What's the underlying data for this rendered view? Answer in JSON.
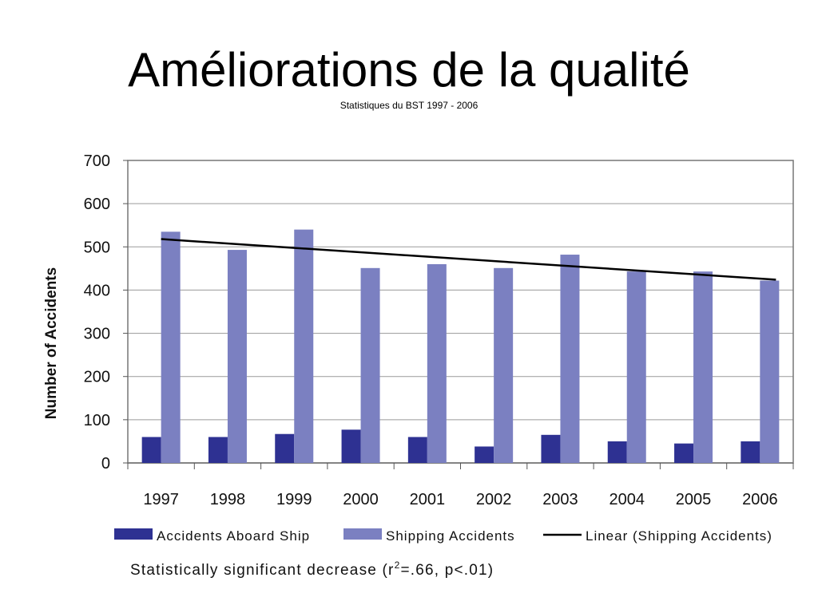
{
  "slide": {
    "title": "Améliorations de la qualité",
    "subtitle": "Statistiques du BST 1997 - 2006"
  },
  "chart_data": {
    "type": "bar",
    "categories": [
      "1997",
      "1998",
      "1999",
      "2000",
      "2001",
      "2002",
      "2003",
      "2004",
      "2005",
      "2006"
    ],
    "series": [
      {
        "name": "Accidents Aboard Ship",
        "color": "#2e3192",
        "values": [
          60,
          60,
          67,
          77,
          60,
          38,
          65,
          50,
          45,
          50
        ]
      },
      {
        "name": "Shipping Accidents",
        "color": "#7b80c1",
        "values": [
          535,
          493,
          540,
          451,
          460,
          451,
          482,
          443,
          443,
          422
        ]
      }
    ],
    "trendline": {
      "name": "Linear (Shipping Accidents)",
      "color": "#000000",
      "start": 518,
      "end": 424
    },
    "ylabel": "Number of Accidents",
    "xlabel": "",
    "ylim": [
      0,
      700
    ],
    "yticks": [
      "0",
      "100",
      "200",
      "300",
      "400",
      "500",
      "600",
      "700"
    ],
    "grid": true,
    "legend_position": "bottom",
    "note": "Statistically significant decrease (r",
    "note_sup": "2",
    "note_end": "=.66, p<.01)"
  }
}
